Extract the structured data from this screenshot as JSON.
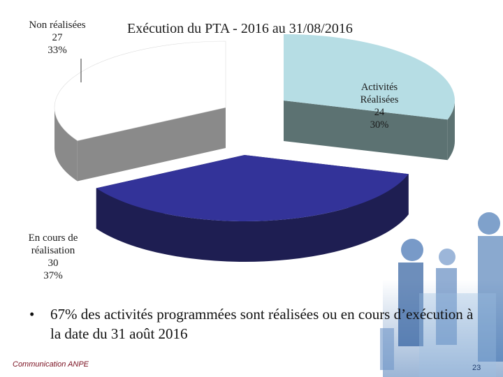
{
  "chart_data": {
    "type": "pie",
    "title": "Exécution du PTA - 2016 au 31/08/2016",
    "slices": [
      {
        "label_lines": [
          "Non réalisées",
          "27",
          "33%"
        ],
        "value": 27,
        "percent": 33,
        "color": "#ffffff",
        "side_color": "#8a8a8a"
      },
      {
        "label_lines": [
          "Activités",
          "Réalisées",
          "24",
          "30%"
        ],
        "value": 24,
        "percent": 30,
        "color": "#b6dde4",
        "side_color": "#5c7272"
      },
      {
        "label_lines": [
          "En cours de",
          "réalisation",
          "30",
          "37%"
        ],
        "value": 30,
        "percent": 37,
        "color": "#333399",
        "side_color": "#1e1e52"
      }
    ]
  },
  "bullet": {
    "symbol": "•",
    "text": "67% des activités programmées sont réalisées ou en cours d’exécution à la date du 31 août 2016"
  },
  "footer": {
    "left_text": "Communication ANPE",
    "page_number": "23"
  },
  "colors": {
    "decor_blue": "#2a62a8",
    "footer_text": "#7a1020"
  }
}
